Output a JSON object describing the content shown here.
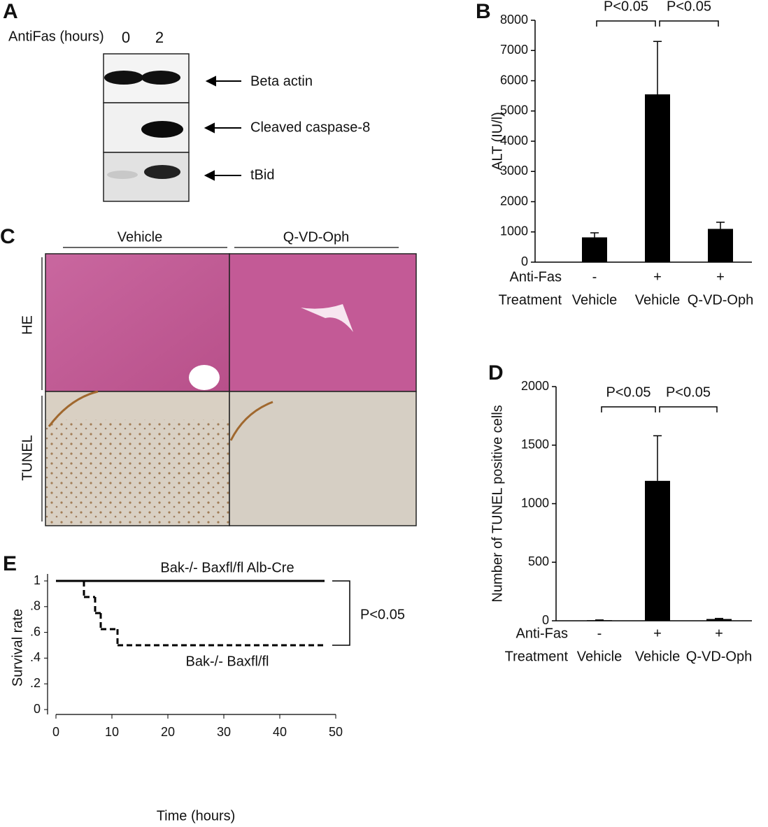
{
  "panel_letters": [
    "A",
    "B",
    "C",
    "D",
    "E"
  ],
  "blot": {
    "x_label": "AntiFas (hours)",
    "lanes": [
      "0",
      "2"
    ],
    "bands": [
      "Beta actin",
      "Cleaved caspase-8",
      "tBid"
    ]
  },
  "histology": {
    "columns": [
      "Vehicle",
      "Q-VD-Oph"
    ],
    "rows": [
      "HE",
      "TUNEL"
    ]
  },
  "chart_data": [
    {
      "type": "bar",
      "y_label": "ALT (IU/l)",
      "color": "#000000",
      "category_rows": [
        {
          "name": "Anti-Fas",
          "labels": [
            "-",
            "+",
            "+"
          ]
        },
        {
          "name": "Treatment",
          "labels": [
            "Vehicle",
            "Vehicle",
            "Q-VD-Oph"
          ]
        }
      ],
      "values": [
        820,
        5550,
        1100
      ],
      "errors": [
        150,
        1750,
        220
      ],
      "ylim": [
        0,
        8000
      ],
      "yticks": [
        0,
        1000,
        2000,
        3000,
        4000,
        5000,
        6000,
        7000,
        8000
      ],
      "significance": [
        "P<0.05",
        "P<0.05"
      ]
    },
    {
      "type": "bar",
      "y_label": "Number of TUNEL positive cells",
      "color": "#000000",
      "category_rows": [
        {
          "name": "Anti-Fas",
          "labels": [
            "-",
            "+",
            "+"
          ]
        },
        {
          "name": "Treatment",
          "labels": [
            "Vehicle",
            "Vehicle",
            "Q-VD-Oph"
          ]
        }
      ],
      "values": [
        5,
        1195,
        15
      ],
      "errors": [
        2,
        385,
        5
      ],
      "ylim": [
        0,
        2000
      ],
      "yticks": [
        0,
        500,
        1000,
        1500,
        2000
      ],
      "significance": [
        "P<0.05",
        "P<0.05"
      ]
    },
    {
      "type": "line",
      "x_label": "Time (hours)",
      "y_label": "Survival rate",
      "step": true,
      "xlim": [
        0,
        50
      ],
      "xticks": [
        0,
        10,
        20,
        30,
        40,
        50
      ],
      "ylim": [
        0,
        1
      ],
      "yticks": [
        0,
        {
          "value": 0.2,
          "label": ".2"
        },
        {
          "value": 0.4,
          "label": ".4"
        },
        {
          "value": 0.6,
          "label": ".6"
        },
        {
          "value": 0.8,
          "label": ".8"
        },
        1
      ],
      "series": [
        {
          "name": "Bak-/- Baxfl/fl Alb-Cre",
          "color": "#000000",
          "style": "solid",
          "x": [
            0,
            48
          ],
          "values": [
            1,
            1
          ]
        },
        {
          "name": "Bak-/- Baxfl/fl",
          "color": "#000000",
          "style": "dashed",
          "x": [
            0,
            5,
            7,
            8,
            11,
            48
          ],
          "values": [
            1,
            0.875,
            0.75,
            0.625,
            0.5,
            0.5
          ]
        }
      ],
      "annotation": "P<0.05"
    }
  ]
}
